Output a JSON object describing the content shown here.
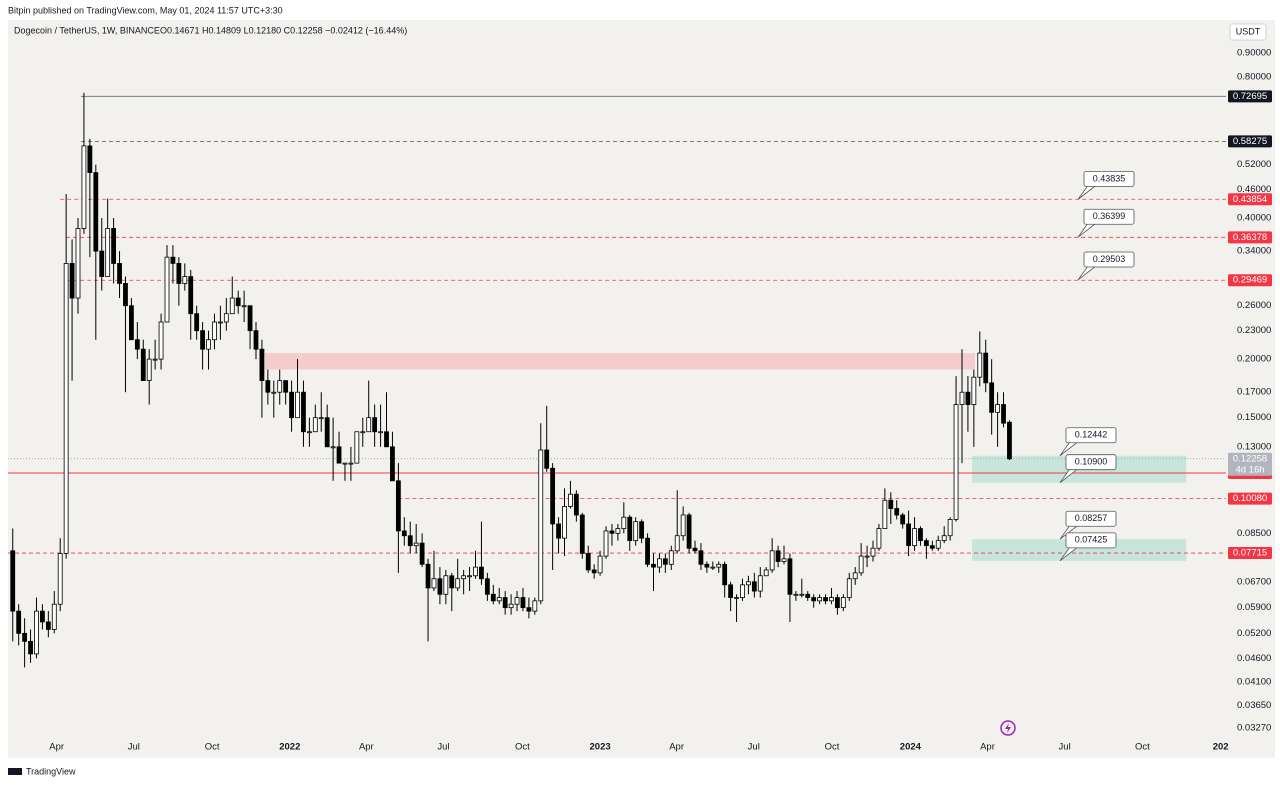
{
  "header": {
    "publisher": "Bitpin published on TradingView.com, May 01, 2024 11:57 UTC+3:30",
    "brand": "TradingView"
  },
  "chart_data": {
    "type": "candlestick",
    "title": "Dogecoin / TetherUS, 1W, BINANCE",
    "legend_values": "O0.14671 H0.14809 L0.12180 C0.12258 −0.02412 (−16.44%)",
    "currency": "USDT",
    "countdown": "4d 16h",
    "log_scale": true,
    "grid": false,
    "up_color": "#ffffff",
    "down_color": "#000000",
    "wick_color": "#000000",
    "open": [
      0.078,
      0.058,
      0.052,
      0.05,
      0.047,
      0.058,
      0.055,
      0.053,
      0.06,
      0.077,
      0.32,
      0.27,
      0.38,
      0.57,
      0.5,
      0.34,
      0.3,
      0.38,
      0.32,
      0.29,
      0.26,
      0.22,
      0.21,
      0.18,
      0.2,
      0.2,
      0.24,
      0.33,
      0.32,
      0.29,
      0.3,
      0.25,
      0.23,
      0.21,
      0.22,
      0.24,
      0.24,
      0.25,
      0.27,
      0.26,
      0.26,
      0.23,
      0.21,
      0.18,
      0.17,
      0.17,
      0.18,
      0.17,
      0.15,
      0.17,
      0.14,
      0.14,
      0.15,
      0.15,
      0.13,
      0.13,
      0.12,
      0.12,
      0.12,
      0.14,
      0.14,
      0.15,
      0.14,
      0.14,
      0.13,
      0.11,
      0.086,
      0.084,
      0.08,
      0.081,
      0.073,
      0.065,
      0.068,
      0.063,
      0.069,
      0.065,
      0.068,
      0.069,
      0.069,
      0.072,
      0.068,
      0.063,
      0.061,
      0.062,
      0.059,
      0.06,
      0.062,
      0.059,
      0.058,
      0.061,
      0.128,
      0.117,
      0.089,
      0.083,
      0.097,
      0.103,
      0.093,
      0.077,
      0.071,
      0.07,
      0.076,
      0.086,
      0.085,
      0.087,
      0.092,
      0.082,
      0.09,
      0.083,
      0.073,
      0.072,
      0.075,
      0.073,
      0.078,
      0.084,
      0.093,
      0.079,
      0.078,
      0.073,
      0.072,
      0.072,
      0.073,
      0.066,
      0.062,
      0.062,
      0.066,
      0.067,
      0.064,
      0.069,
      0.071,
      0.078,
      0.074,
      0.075,
      0.063,
      0.063,
      0.063,
      0.062,
      0.061,
      0.062,
      0.061,
      0.062,
      0.059,
      0.062,
      0.068,
      0.07,
      0.076,
      0.076,
      0.079,
      0.087,
      0.1,
      0.096,
      0.093,
      0.089,
      0.08,
      0.087,
      0.082,
      0.08,
      0.079,
      0.082,
      0.084,
      0.091,
      0.16,
      0.17,
      0.16,
      0.183,
      0.206,
      0.178,
      0.154,
      0.16,
      0.14671
    ],
    "high": [
      0.087,
      0.06,
      0.056,
      0.053,
      0.062,
      0.06,
      0.058,
      0.064,
      0.083,
      0.45,
      0.36,
      0.4,
      0.74,
      0.59,
      0.52,
      0.4,
      0.44,
      0.4,
      0.34,
      0.3,
      0.27,
      0.24,
      0.22,
      0.21,
      0.22,
      0.25,
      0.35,
      0.35,
      0.33,
      0.32,
      0.31,
      0.26,
      0.24,
      0.23,
      0.25,
      0.26,
      0.27,
      0.3,
      0.28,
      0.28,
      0.26,
      0.24,
      0.22,
      0.19,
      0.18,
      0.19,
      0.18,
      0.18,
      0.2,
      0.18,
      0.15,
      0.16,
      0.17,
      0.16,
      0.15,
      0.14,
      0.12,
      0.13,
      0.14,
      0.15,
      0.18,
      0.16,
      0.16,
      0.17,
      0.14,
      0.12,
      0.092,
      0.09,
      0.089,
      0.085,
      0.075,
      0.078,
      0.072,
      0.071,
      0.07,
      0.075,
      0.071,
      0.072,
      0.078,
      0.09,
      0.07,
      0.066,
      0.065,
      0.064,
      0.063,
      0.064,
      0.065,
      0.062,
      0.062,
      0.146,
      0.159,
      0.12,
      0.092,
      0.106,
      0.11,
      0.105,
      0.094,
      0.08,
      0.073,
      0.078,
      0.088,
      0.089,
      0.089,
      0.099,
      0.093,
      0.092,
      0.091,
      0.085,
      0.077,
      0.077,
      0.077,
      0.08,
      0.105,
      0.097,
      0.094,
      0.082,
      0.081,
      0.074,
      0.074,
      0.074,
      0.074,
      0.067,
      0.063,
      0.068,
      0.069,
      0.07,
      0.072,
      0.072,
      0.083,
      0.08,
      0.08,
      0.077,
      0.064,
      0.068,
      0.064,
      0.063,
      0.063,
      0.063,
      0.065,
      0.063,
      0.063,
      0.07,
      0.072,
      0.081,
      0.08,
      0.082,
      0.089,
      0.106,
      0.104,
      0.1,
      0.094,
      0.095,
      0.092,
      0.088,
      0.083,
      0.082,
      0.084,
      0.088,
      0.092,
      0.184,
      0.21,
      0.184,
      0.19,
      0.229,
      0.22,
      0.2,
      0.17,
      0.17,
      0.14809
    ],
    "low": [
      0.05,
      0.049,
      0.044,
      0.045,
      0.046,
      0.053,
      0.051,
      0.052,
      0.058,
      0.075,
      0.18,
      0.25,
      0.37,
      0.33,
      0.22,
      0.28,
      0.3,
      0.29,
      0.27,
      0.17,
      0.22,
      0.2,
      0.18,
      0.16,
      0.19,
      0.19,
      0.24,
      0.29,
      0.26,
      0.28,
      0.22,
      0.22,
      0.19,
      0.19,
      0.21,
      0.22,
      0.23,
      0.25,
      0.25,
      0.24,
      0.21,
      0.2,
      0.15,
      0.16,
      0.15,
      0.16,
      0.16,
      0.14,
      0.15,
      0.13,
      0.13,
      0.14,
      0.14,
      0.13,
      0.11,
      0.12,
      0.11,
      0.11,
      0.12,
      0.13,
      0.14,
      0.13,
      0.13,
      0.13,
      0.11,
      0.07,
      0.08,
      0.077,
      0.077,
      0.072,
      0.05,
      0.064,
      0.06,
      0.06,
      0.058,
      0.064,
      0.063,
      0.064,
      0.068,
      0.066,
      0.061,
      0.06,
      0.06,
      0.057,
      0.057,
      0.058,
      0.058,
      0.056,
      0.057,
      0.06,
      0.115,
      0.071,
      0.077,
      0.076,
      0.096,
      0.09,
      0.075,
      0.07,
      0.068,
      0.069,
      0.075,
      0.08,
      0.082,
      0.085,
      0.078,
      0.08,
      0.081,
      0.072,
      0.064,
      0.07,
      0.07,
      0.071,
      0.077,
      0.082,
      0.077,
      0.077,
      0.071,
      0.07,
      0.071,
      0.07,
      0.062,
      0.058,
      0.055,
      0.061,
      0.063,
      0.062,
      0.062,
      0.069,
      0.07,
      0.072,
      0.073,
      0.055,
      0.061,
      0.062,
      0.061,
      0.059,
      0.06,
      0.06,
      0.06,
      0.057,
      0.058,
      0.061,
      0.066,
      0.069,
      0.072,
      0.074,
      0.078,
      0.087,
      0.089,
      0.091,
      0.087,
      0.076,
      0.078,
      0.08,
      0.075,
      0.078,
      0.078,
      0.081,
      0.082,
      0.09,
      0.12,
      0.14,
      0.13,
      0.175,
      0.17,
      0.138,
      0.13,
      0.143,
      0.1218
    ],
    "close": [
      0.058,
      0.052,
      0.05,
      0.047,
      0.058,
      0.055,
      0.053,
      0.06,
      0.077,
      0.32,
      0.27,
      0.38,
      0.57,
      0.5,
      0.34,
      0.3,
      0.38,
      0.32,
      0.29,
      0.26,
      0.22,
      0.21,
      0.18,
      0.2,
      0.2,
      0.24,
      0.33,
      0.32,
      0.29,
      0.3,
      0.25,
      0.23,
      0.21,
      0.22,
      0.24,
      0.24,
      0.25,
      0.27,
      0.26,
      0.26,
      0.23,
      0.21,
      0.18,
      0.17,
      0.17,
      0.18,
      0.17,
      0.15,
      0.17,
      0.14,
      0.14,
      0.15,
      0.15,
      0.13,
      0.13,
      0.12,
      0.12,
      0.12,
      0.14,
      0.14,
      0.15,
      0.14,
      0.14,
      0.13,
      0.11,
      0.086,
      0.084,
      0.08,
      0.081,
      0.073,
      0.065,
      0.068,
      0.063,
      0.069,
      0.065,
      0.068,
      0.069,
      0.069,
      0.072,
      0.068,
      0.063,
      0.061,
      0.062,
      0.059,
      0.06,
      0.062,
      0.059,
      0.058,
      0.061,
      0.128,
      0.117,
      0.089,
      0.083,
      0.097,
      0.103,
      0.093,
      0.077,
      0.071,
      0.07,
      0.076,
      0.086,
      0.085,
      0.087,
      0.092,
      0.082,
      0.09,
      0.083,
      0.073,
      0.072,
      0.075,
      0.073,
      0.078,
      0.084,
      0.093,
      0.079,
      0.078,
      0.073,
      0.072,
      0.072,
      0.073,
      0.066,
      0.062,
      0.062,
      0.066,
      0.067,
      0.064,
      0.069,
      0.071,
      0.078,
      0.074,
      0.075,
      0.063,
      0.063,
      0.063,
      0.062,
      0.061,
      0.062,
      0.061,
      0.062,
      0.059,
      0.062,
      0.068,
      0.07,
      0.076,
      0.076,
      0.079,
      0.087,
      0.1,
      0.096,
      0.093,
      0.089,
      0.08,
      0.087,
      0.082,
      0.08,
      0.079,
      0.082,
      0.084,
      0.091,
      0.16,
      0.17,
      0.16,
      0.183,
      0.206,
      0.178,
      0.154,
      0.16,
      0.146,
      0.12258
    ],
    "xlim": [
      -0.8,
      204.5
    ],
    "xticks": [
      {
        "value": 7.4,
        "label": "Apr"
      },
      {
        "value": 20.4,
        "label": "Jul"
      },
      {
        "value": 33.6,
        "label": "Oct"
      },
      {
        "value": 46.7,
        "label": "2022"
      },
      {
        "value": 59.6,
        "label": "Apr"
      },
      {
        "value": 72.6,
        "label": "Jul"
      },
      {
        "value": 85.9,
        "label": "Oct"
      },
      {
        "value": 99.0,
        "label": "2023"
      },
      {
        "value": 111.9,
        "label": "Apr"
      },
      {
        "value": 124.9,
        "label": "Jul"
      },
      {
        "value": 138.1,
        "label": "Oct"
      },
      {
        "value": 151.3,
        "label": "2024"
      },
      {
        "value": 164.3,
        "label": "Apr"
      },
      {
        "value": 177.3,
        "label": "Jul"
      },
      {
        "value": 190.4,
        "label": "Oct"
      },
      {
        "value": 203.6,
        "label": "202"
      }
    ],
    "ylim": [
      0.0311,
      1.058
    ],
    "yticks": [
      {
        "value": 0.9,
        "label": "0.90000"
      },
      {
        "value": 0.8,
        "label": "0.80000"
      },
      {
        "value": 0.52,
        "label": "0.52000"
      },
      {
        "value": 0.46,
        "label": "0.46000"
      },
      {
        "value": 0.4,
        "label": "0.40000"
      },
      {
        "value": 0.34,
        "label": "0.34000"
      },
      {
        "value": 0.26,
        "label": "0.26000"
      },
      {
        "value": 0.23,
        "label": "0.23000"
      },
      {
        "value": 0.2,
        "label": "0.20000"
      },
      {
        "value": 0.17,
        "label": "0.17000"
      },
      {
        "value": 0.15,
        "label": "0.15000"
      },
      {
        "value": 0.13,
        "label": "0.13000"
      },
      {
        "value": 0.085,
        "label": "0.08500"
      },
      {
        "value": 0.067,
        "label": "0.06700"
      },
      {
        "value": 0.059,
        "label": "0.05900"
      },
      {
        "value": 0.052,
        "label": "0.05200"
      },
      {
        "value": 0.046,
        "label": "0.04600"
      },
      {
        "value": 0.041,
        "label": "0.04100"
      },
      {
        "value": 0.0365,
        "label": "0.03650"
      },
      {
        "value": 0.0327,
        "label": "0.03270"
      }
    ],
    "levels": [
      {
        "value": 0.72695,
        "label": "0.72695",
        "color": "#131722",
        "line_color": "#787b86",
        "style": "solid",
        "from": 11.5
      },
      {
        "value": 0.58275,
        "label": "0.58275",
        "color": "#131722",
        "line_color": "#555555",
        "style": "dashed",
        "from": 11.5
      },
      {
        "value": 0.43854,
        "label": "0.43854",
        "color": "#f23645",
        "line_color": "#f23645",
        "style": "dashed",
        "from": 8
      },
      {
        "value": 0.36378,
        "label": "0.36378",
        "color": "#f23645",
        "line_color": "#f23645",
        "style": "dashed",
        "from": 9
      },
      {
        "value": 0.29469,
        "label": "0.29469",
        "color": "#f23645",
        "line_color": "#f23645",
        "style": "dashed",
        "from": 9
      },
      {
        "value": 0.11432,
        "label": "0.11432",
        "color": "#f23645",
        "line_color": "#f23645",
        "style": "solid",
        "from": -0.8
      },
      {
        "value": 0.1008,
        "label": "0.10080",
        "color": "#f23645",
        "line_color": "#f23645",
        "style": "dashed",
        "from": 65
      },
      {
        "value": 0.07715,
        "label": "0.07715",
        "color": "#f23645",
        "line_color": "#f23645",
        "style": "dashed",
        "from": -0.8
      }
    ],
    "zones": [
      {
        "ylim": [
          0.19,
          0.206
        ],
        "x": [
          42.5,
          162.2
        ],
        "color": "#f5c6c6"
      },
      {
        "ylim": [
          0.109,
          0.12442
        ],
        "x": [
          161.7,
          197.8
        ],
        "color": "#bfe3d6"
      },
      {
        "ylim": [
          0.07425,
          0.08257
        ],
        "x": [
          161.7,
          197.8
        ],
        "color": "#bfe3d6"
      }
    ],
    "annotations": [
      {
        "value": 0.43835,
        "label": "0.43835"
      },
      {
        "value": 0.36399,
        "label": "0.36399"
      },
      {
        "value": 0.29503,
        "label": "0.29503"
      },
      {
        "value": 0.12442,
        "label": "0.12442"
      },
      {
        "value": 0.109,
        "label": "0.10900"
      },
      {
        "value": 0.08257,
        "label": "0.08257"
      },
      {
        "value": 0.07425,
        "label": "0.07425"
      }
    ]
  }
}
